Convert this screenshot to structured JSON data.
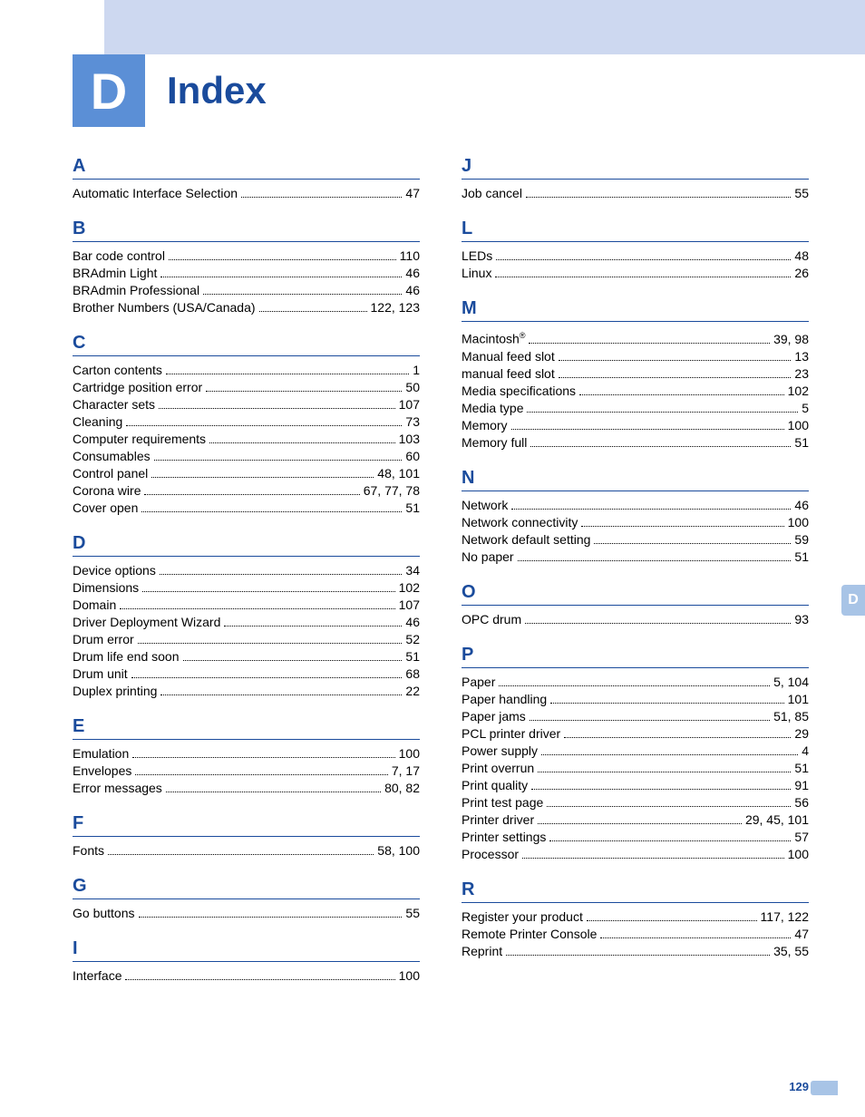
{
  "header": {
    "badge_letter": "D",
    "title": "Index",
    "side_tab_letter": "D",
    "page_number": "129"
  },
  "colors": {
    "top_bar": "#cdd8f0",
    "badge_bg": "#5b8fd6",
    "accent": "#1a4b9c",
    "side_tab_bg": "#a8c4e6",
    "text": "#000000",
    "bg": "#ffffff"
  },
  "left_column": [
    {
      "letter": "A",
      "entries": [
        {
          "term": "Automatic Interface Selection",
          "pages": "47"
        }
      ]
    },
    {
      "letter": "B",
      "entries": [
        {
          "term": "Bar code control",
          "pages": "110"
        },
        {
          "term": "BRAdmin Light",
          "pages": "46"
        },
        {
          "term": "BRAdmin Professional",
          "pages": "46"
        },
        {
          "term": "Brother Numbers (USA/Canada)",
          "pages": "122, 123"
        }
      ]
    },
    {
      "letter": "C",
      "entries": [
        {
          "term": "Carton contents",
          "pages": "1"
        },
        {
          "term": "Cartridge position error",
          "pages": "50"
        },
        {
          "term": "Character sets",
          "pages": "107"
        },
        {
          "term": "Cleaning",
          "pages": "73"
        },
        {
          "term": "Computer requirements",
          "pages": "103"
        },
        {
          "term": "Consumables",
          "pages": "60"
        },
        {
          "term": "Control panel",
          "pages": "48, 101"
        },
        {
          "term": "Corona wire",
          "pages": "67, 77, 78"
        },
        {
          "term": "Cover open",
          "pages": "51"
        }
      ]
    },
    {
      "letter": "D",
      "entries": [
        {
          "term": "Device options",
          "pages": "34"
        },
        {
          "term": "Dimensions",
          "pages": "102"
        },
        {
          "term": "Domain",
          "pages": "107"
        },
        {
          "term": "Driver Deployment Wizard",
          "pages": "46"
        },
        {
          "term": "Drum error",
          "pages": "52"
        },
        {
          "term": "Drum life end soon",
          "pages": "51"
        },
        {
          "term": "Drum unit",
          "pages": "68"
        },
        {
          "term": "Duplex printing",
          "pages": "22"
        }
      ]
    },
    {
      "letter": "E",
      "entries": [
        {
          "term": "Emulation",
          "pages": "100"
        },
        {
          "term": "Envelopes",
          "pages": "7, 17"
        },
        {
          "term": "Error messages",
          "pages": "80, 82"
        }
      ]
    },
    {
      "letter": "F",
      "entries": [
        {
          "term": "Fonts",
          "pages": "58, 100"
        }
      ]
    },
    {
      "letter": "G",
      "entries": [
        {
          "term": "Go buttons",
          "pages": "55"
        }
      ]
    },
    {
      "letter": "I",
      "entries": [
        {
          "term": "Interface",
          "pages": "100"
        }
      ]
    }
  ],
  "right_column": [
    {
      "letter": "J",
      "entries": [
        {
          "term": "Job cancel",
          "pages": "55"
        }
      ]
    },
    {
      "letter": "L",
      "entries": [
        {
          "term": "LEDs",
          "pages": "48"
        },
        {
          "term": "Linux",
          "pages": "26"
        }
      ]
    },
    {
      "letter": "M",
      "entries": [
        {
          "term": "Macintosh®",
          "pages": "39, 98",
          "sup": true
        },
        {
          "term": "Manual feed slot",
          "pages": "13"
        },
        {
          "term": "manual feed slot",
          "pages": "23"
        },
        {
          "term": "Media specifications",
          "pages": "102"
        },
        {
          "term": "Media type",
          "pages": "5"
        },
        {
          "term": "Memory",
          "pages": "100"
        },
        {
          "term": "Memory full",
          "pages": "51"
        }
      ]
    },
    {
      "letter": "N",
      "entries": [
        {
          "term": "Network",
          "pages": "46"
        },
        {
          "term": "Network connectivity",
          "pages": "100"
        },
        {
          "term": "Network default setting",
          "pages": "59"
        },
        {
          "term": "No paper",
          "pages": "51"
        }
      ]
    },
    {
      "letter": "O",
      "entries": [
        {
          "term": "OPC drum",
          "pages": "93"
        }
      ]
    },
    {
      "letter": "P",
      "entries": [
        {
          "term": "Paper",
          "pages": "5, 104"
        },
        {
          "term": "Paper handling",
          "pages": "101"
        },
        {
          "term": "Paper jams",
          "pages": "51, 85"
        },
        {
          "term": "PCL printer driver",
          "pages": "29"
        },
        {
          "term": "Power supply",
          "pages": "4"
        },
        {
          "term": "Print overrun",
          "pages": "51"
        },
        {
          "term": "Print quality",
          "pages": "91"
        },
        {
          "term": "Print test page",
          "pages": "56"
        },
        {
          "term": "Printer driver",
          "pages": "29, 45, 101"
        },
        {
          "term": "Printer settings",
          "pages": "57"
        },
        {
          "term": "Processor",
          "pages": "100"
        }
      ]
    },
    {
      "letter": "R",
      "entries": [
        {
          "term": "Register your product",
          "pages": "117, 122"
        },
        {
          "term": "Remote Printer Console",
          "pages": "47"
        },
        {
          "term": "Reprint",
          "pages": "35, 55"
        }
      ]
    }
  ]
}
